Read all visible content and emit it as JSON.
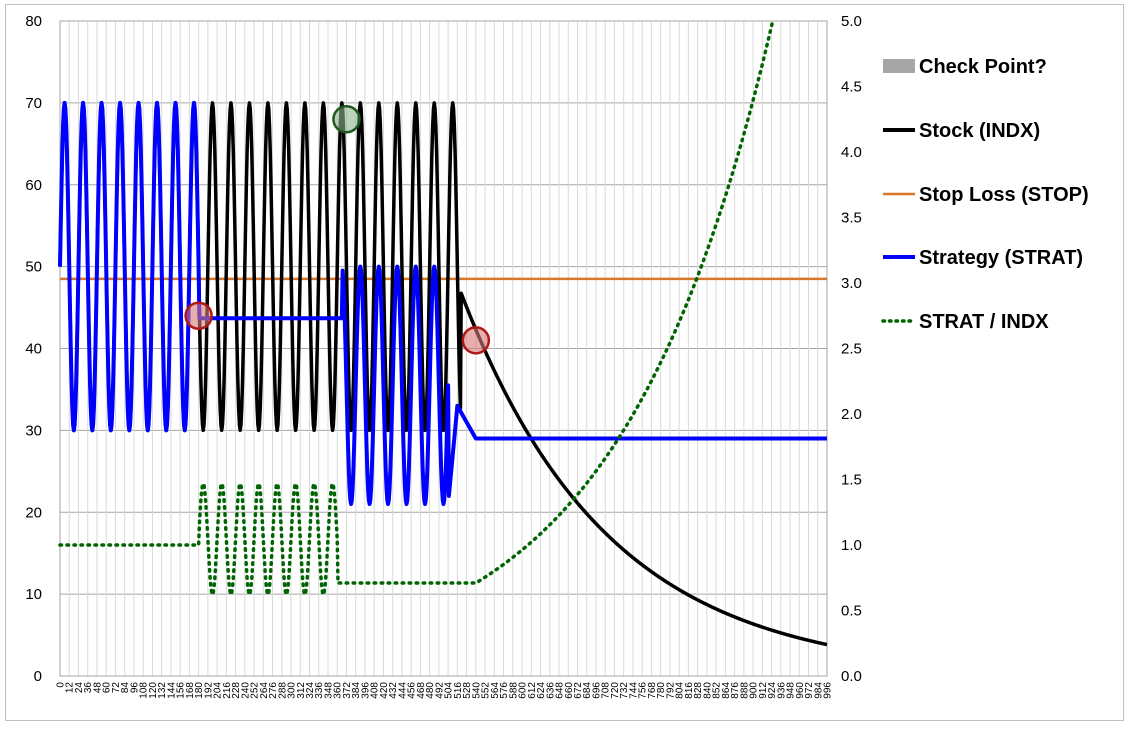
{
  "chart_data": {
    "type": "line",
    "title": "",
    "xlabel": "",
    "ylabel": "",
    "y2label": "",
    "xlim": [
      0,
      996
    ],
    "ylim": [
      0,
      80
    ],
    "y2lim": [
      0,
      5.0
    ],
    "x_tick_step": 12,
    "y_ticks": [
      "0",
      "10",
      "20",
      "30",
      "40",
      "50",
      "60",
      "70",
      "80"
    ],
    "y2_ticks": [
      "0.0",
      "0.5",
      "1.0",
      "1.5",
      "2.0",
      "2.5",
      "3.0",
      "3.5",
      "4.0",
      "4.5",
      "5.0"
    ],
    "grid": true,
    "legend_position": "right",
    "legend": [
      {
        "label": "Check Point?",
        "style": "box",
        "color": "#a6a6a6"
      },
      {
        "label": "Stock (INDX)",
        "style": "line",
        "color": "#000000"
      },
      {
        "label": "Stop Loss (STOP)",
        "style": "line",
        "color": "#d8772a"
      },
      {
        "label": "Strategy (STRAT)",
        "style": "line",
        "color": "#0000ff"
      },
      {
        "label": "STRAT / INDX",
        "style": "dotted",
        "color": "#006400"
      }
    ],
    "stop_loss": 48.5,
    "series": [
      {
        "name": "Stock (INDX)",
        "axis": "left",
        "description": "oscillates 30-70 with period 24 from x=0 to x=520, then jumps to 47 and decays exponentially to about 4 at x=996"
      },
      {
        "name": "Stop Loss (STOP)",
        "axis": "left",
        "value": 48.5
      },
      {
        "name": "Strategy (STRAT)",
        "axis": "left",
        "description": "follows INDX until x=180, flat at 43.7 to x=366, oscillates 21-50 to x=504, 33 at x=516 falling to 29 at x=540, flat at 29 to x=996"
      },
      {
        "name": "STRAT / INDX",
        "axis": "right",
        "description": "1.0 until x=180, oscillates 0.62-1.47 to x=360, flat 0.71 to x=540, then rising exponentially to 5.0 near x=924"
      }
    ],
    "check_points": [
      {
        "x": 180,
        "y": 44,
        "color": "#d97a7a"
      },
      {
        "x": 372,
        "y": 68,
        "color": "#8fb58f"
      },
      {
        "x": 540,
        "y": 41,
        "color": "#d97a7a"
      }
    ]
  }
}
